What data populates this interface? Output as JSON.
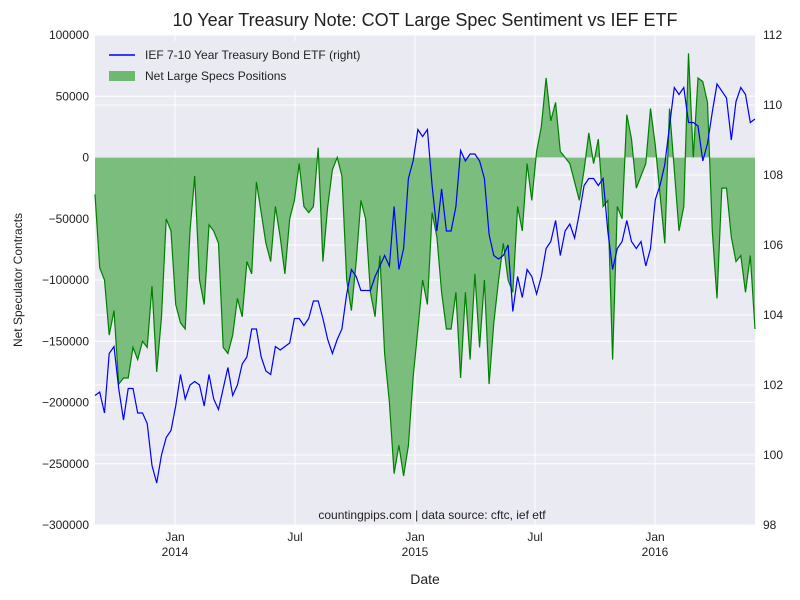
{
  "chart_data": {
    "type": "line",
    "title": "10 Year Treasury Note: COT Large Spec Sentiment vs IEF ETF",
    "xlabel": "Date",
    "ylabel": "Net Speculator Contracts",
    "annotation": "countingpips.com | data source: cftc, ief etf",
    "xlim": [
      "2013-09",
      "2016-06"
    ],
    "xticks": [
      {
        "value": "2014-01",
        "label": "Jan\n2014"
      },
      {
        "value": "2014-07",
        "label": "Jul"
      },
      {
        "value": "2015-01",
        "label": "Jan\n2015"
      },
      {
        "value": "2015-07",
        "label": "Jul"
      },
      {
        "value": "2016-01",
        "label": "Jan\n2016"
      }
    ],
    "ylim": [
      -300000,
      100000
    ],
    "yticks": [
      {
        "value": -300000,
        "label": "−300000"
      },
      {
        "value": -250000,
        "label": "−250000"
      },
      {
        "value": -200000,
        "label": "−200000"
      },
      {
        "value": -150000,
        "label": "−150000"
      },
      {
        "value": -100000,
        "label": "−100000"
      },
      {
        "value": -50000,
        "label": "−50000"
      },
      0,
      50000,
      100000
    ],
    "y2lim": [
      98,
      112
    ],
    "y2ticks": [
      98,
      100,
      102,
      104,
      106,
      108,
      110,
      112
    ],
    "grid": true,
    "legend": "upper left",
    "series": [
      {
        "name": "IEF 7-10 Year Treasury Bond ETF (right)",
        "color": "#0000ff",
        "axis": "y2",
        "kind": "line",
        "values": [
          101.7,
          101.8,
          101.2,
          102.9,
          103.1,
          101.9,
          101.0,
          101.9,
          101.9,
          101.2,
          101.2,
          100.9,
          99.7,
          99.2,
          100.0,
          100.5,
          100.7,
          101.4,
          102.3,
          101.6,
          102.0,
          102.1,
          102.0,
          101.4,
          102.3,
          101.6,
          101.3,
          101.9,
          102.5,
          101.7,
          102.0,
          102.6,
          102.8,
          103.6,
          103.6,
          102.8,
          102.4,
          102.3,
          103.1,
          103.0,
          103.1,
          103.2,
          103.9,
          103.9,
          103.7,
          103.9,
          104.4,
          104.4,
          103.9,
          103.3,
          102.9,
          103.3,
          103.6,
          104.6,
          105.3,
          105.1,
          104.7,
          104.7,
          104.7,
          105.1,
          105.4,
          105.7,
          105.4,
          107.1,
          105.3,
          105.9,
          107.9,
          108.4,
          109.3,
          109.1,
          109.3,
          107.7,
          106.4,
          107.6,
          106.4,
          106.4,
          107.1,
          108.7,
          108.4,
          108.6,
          108.6,
          108.4,
          107.9,
          106.3,
          105.7,
          105.6,
          105.7,
          106.0,
          104.1,
          105.1,
          104.5,
          105.3,
          105.1,
          104.6,
          105.1,
          105.9,
          106.1,
          106.7,
          105.7,
          106.4,
          106.6,
          106.2,
          106.9,
          107.7,
          107.9,
          107.9,
          107.7,
          107.9,
          106.4,
          105.3,
          105.9,
          106.1,
          106.7,
          106.1,
          105.9,
          106.1,
          105.4,
          105.9,
          107.3,
          107.7,
          108.3,
          109.4,
          110.5,
          110.3,
          110.5,
          109.5,
          109.5,
          109.4,
          108.4,
          108.9,
          109.8,
          110.6,
          110.4,
          110.2,
          109.0,
          110.1,
          110.5,
          110.3,
          109.5,
          109.6
        ]
      },
      {
        "name": "Net Large Specs Positions",
        "color": "#008000",
        "fill": "#6fb86f",
        "kind": "area",
        "values": [
          -30000,
          -90000,
          -100000,
          -145000,
          -125000,
          -185000,
          -180000,
          -180000,
          -155000,
          -165000,
          -150000,
          -155000,
          -105000,
          -175000,
          -130000,
          -50000,
          -60000,
          -120000,
          -135000,
          -140000,
          -60000,
          -15000,
          -100000,
          -120000,
          -55000,
          -60000,
          -70000,
          -155000,
          -160000,
          -145000,
          -115000,
          -130000,
          -85000,
          -95000,
          -20000,
          -45000,
          -70000,
          -85000,
          -40000,
          -65000,
          -95000,
          -50000,
          -35000,
          -5000,
          -40000,
          -45000,
          -40000,
          8000,
          -85000,
          -40000,
          -10000,
          0,
          -15000,
          -100000,
          -125000,
          -85000,
          -35000,
          -50000,
          -110000,
          -130000,
          -80000,
          -160000,
          -200000,
          -258000,
          -235000,
          -260000,
          -235000,
          -180000,
          -140000,
          -100000,
          -120000,
          -45000,
          -65000,
          -110000,
          -140000,
          -140000,
          -110000,
          -180000,
          -110000,
          -165000,
          -95000,
          -155000,
          -100000,
          -185000,
          -135000,
          -100000,
          -70000,
          -100000,
          -110000,
          -40000,
          -60000,
          -5000,
          -35000,
          5000,
          25000,
          65000,
          30000,
          45000,
          5000,
          0,
          -5000,
          -20000,
          -35000,
          -10000,
          20000,
          -5000,
          15000,
          -40000,
          -35000,
          -165000,
          -40000,
          -50000,
          35000,
          15000,
          -25000,
          -15000,
          -5000,
          40000,
          10000,
          -30000,
          -70000,
          40000,
          -10000,
          -60000,
          -40000,
          85000,
          0,
          65000,
          62000,
          45000,
          -60000,
          -115000,
          -25000,
          -25000,
          -65000,
          -85000,
          -80000,
          -110000,
          -80000,
          -140000
        ]
      }
    ]
  }
}
